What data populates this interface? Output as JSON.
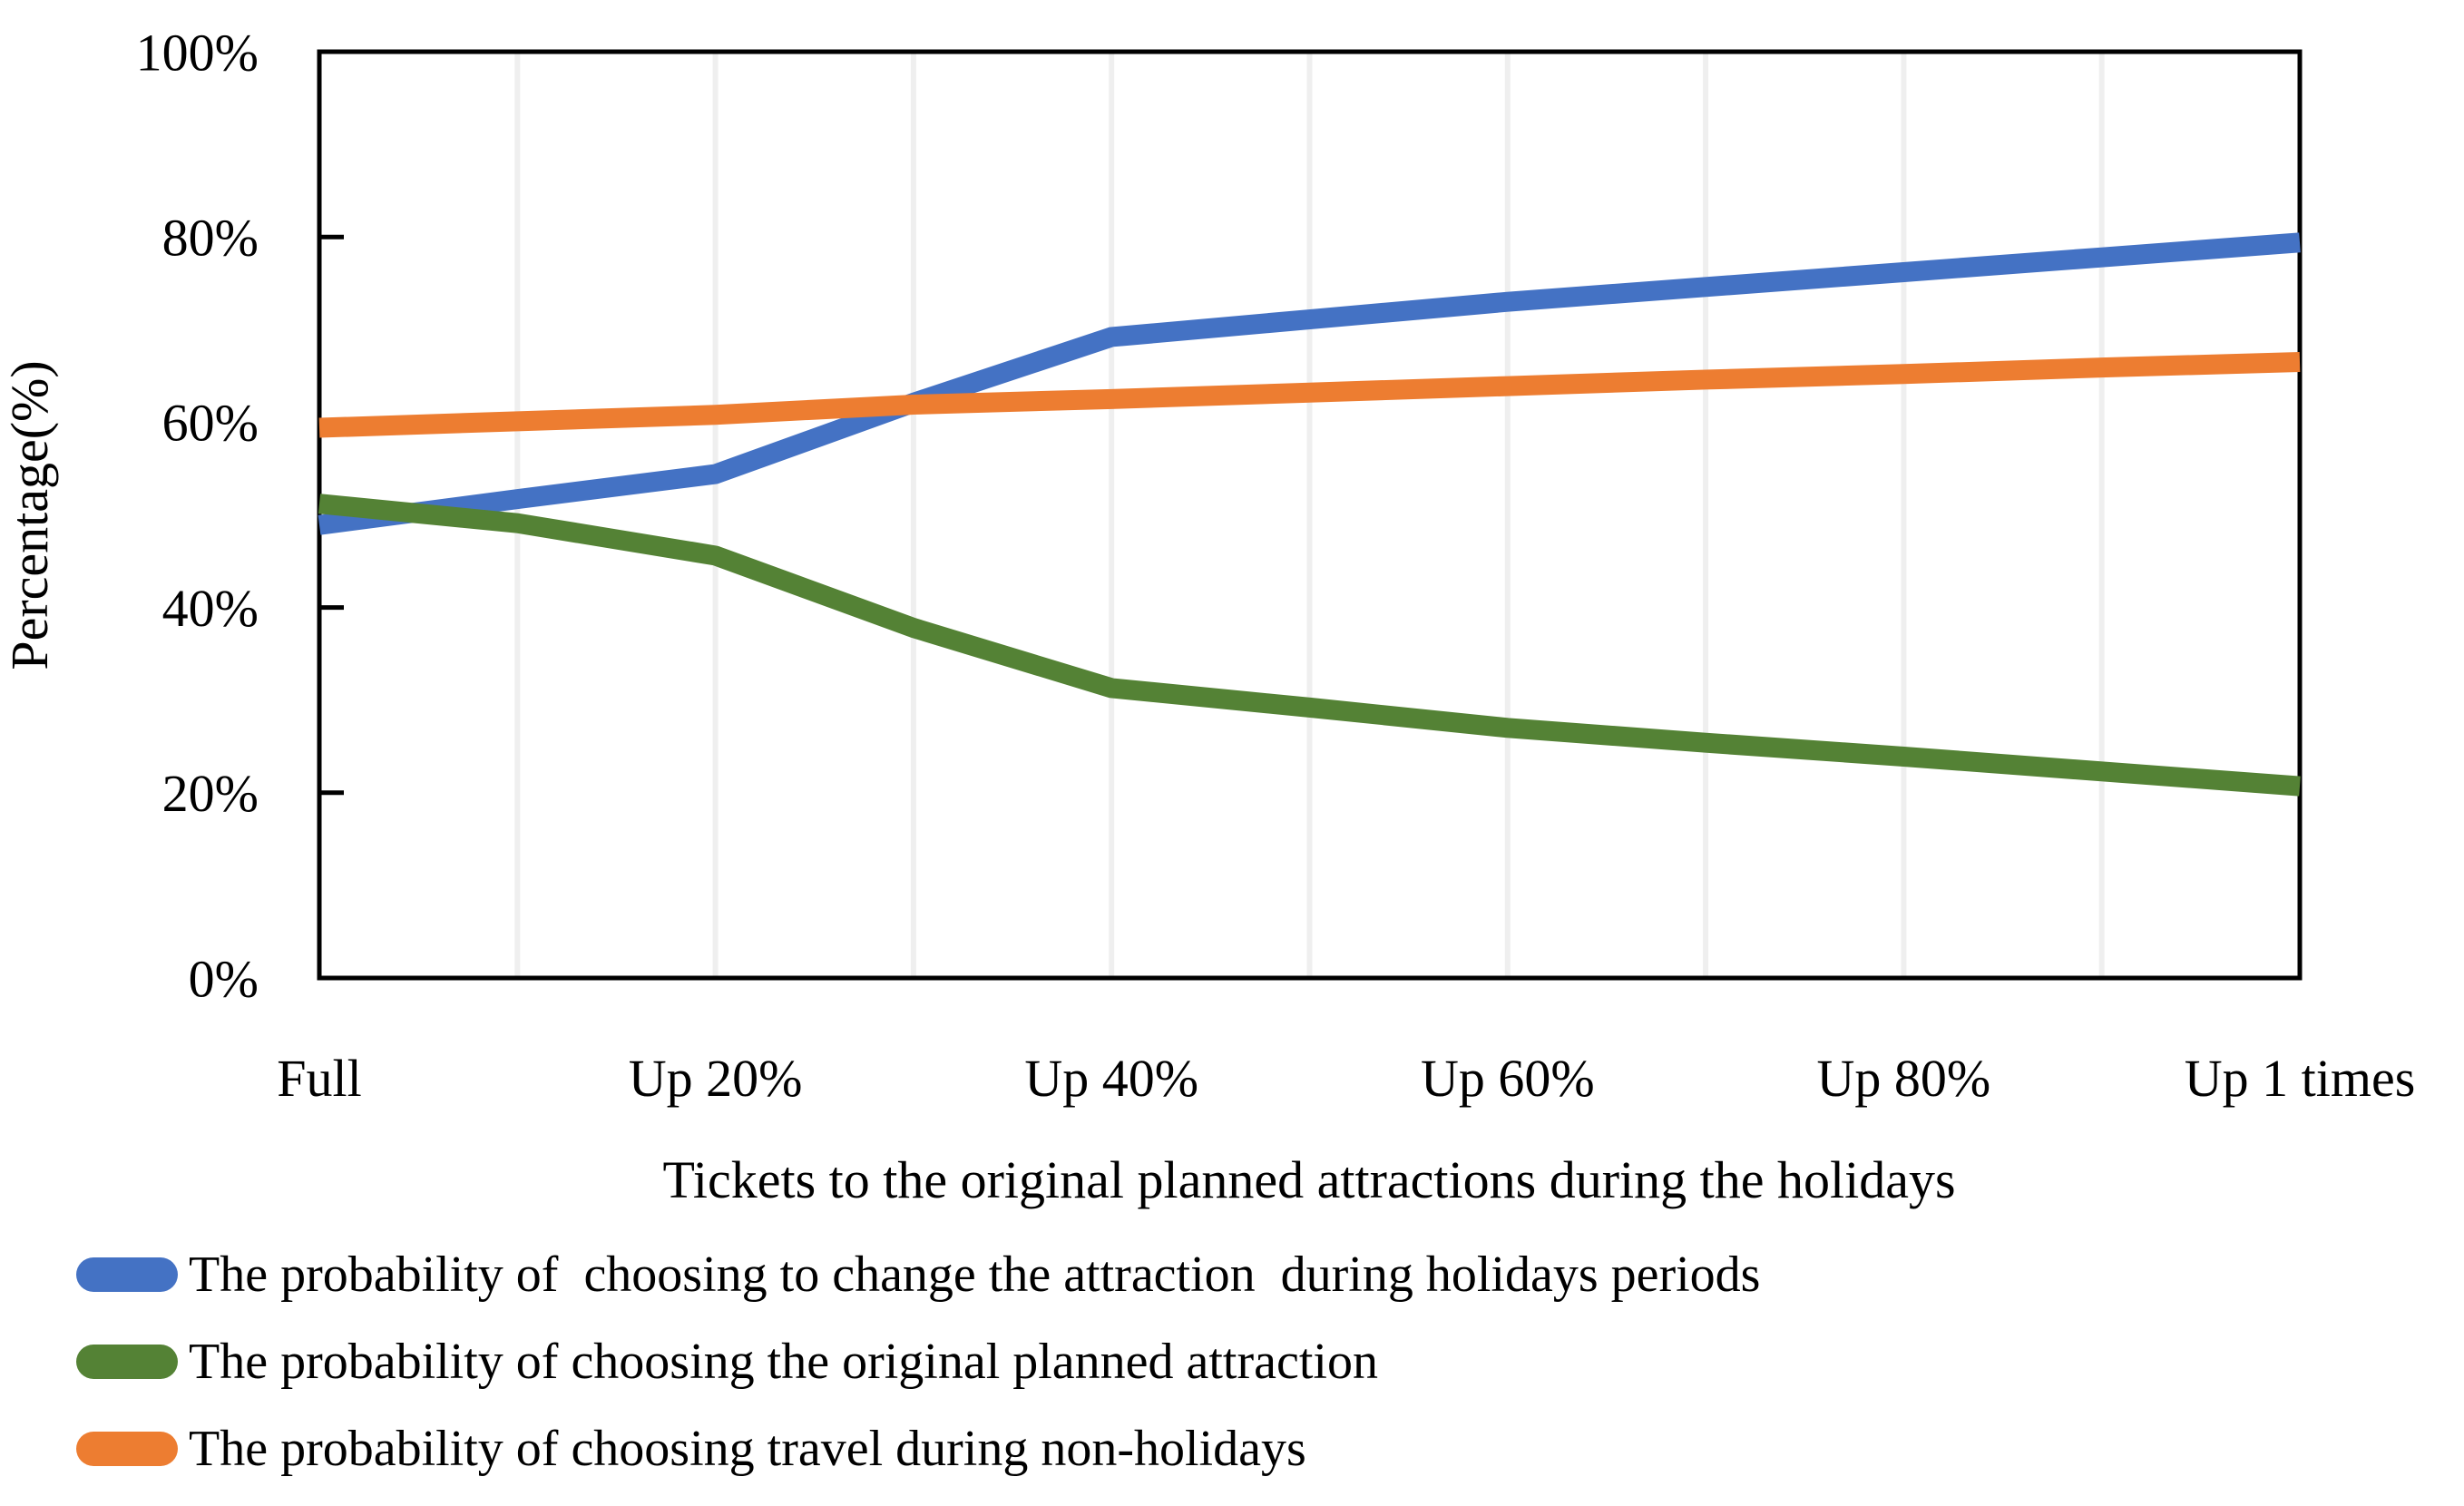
{
  "chart_data": {
    "type": "line",
    "x_title": "Tickets to the original planned attractions during the holidays",
    "y_title": "Percentage(%)",
    "x_tick_labels": [
      "Full",
      "Up 20%",
      "Up 40%",
      "Up 60%",
      "Up 80%",
      "Up 1 times"
    ],
    "x_labels_every_n_points": 2,
    "y_tick_labels": [
      "100%",
      "80%",
      "60%",
      "40%",
      "20%",
      "0%"
    ],
    "ylim": [
      0,
      100
    ],
    "grid": "vertical-light-gridlines-at-every-data-point",
    "legend_position": "bottom-left",
    "frame_color": "#000000",
    "gridline_color": "#EFEFEF",
    "series": [
      {
        "name": "The probability of  choosing to change the attraction  during holidays periods",
        "color": "#4472C4",
        "values": [
          48.9,
          51.7,
          54.4,
          62.1,
          69.2,
          71.1,
          73.0,
          74.6,
          76.2,
          77.8,
          79.4
        ]
      },
      {
        "name": "The probability of choosing the original planned attraction",
        "color": "#548235",
        "values": [
          51.2,
          49.1,
          45.6,
          37.8,
          31.3,
          29.2,
          27.0,
          25.4,
          23.9,
          22.3,
          20.7
        ]
      },
      {
        "name": "The probability of choosing travel during non-holidays",
        "color": "#ED7D31",
        "values": [
          59.4,
          60.1,
          60.8,
          61.9,
          62.5,
          63.2,
          63.9,
          64.6,
          65.2,
          65.9,
          66.5
        ]
      }
    ]
  }
}
